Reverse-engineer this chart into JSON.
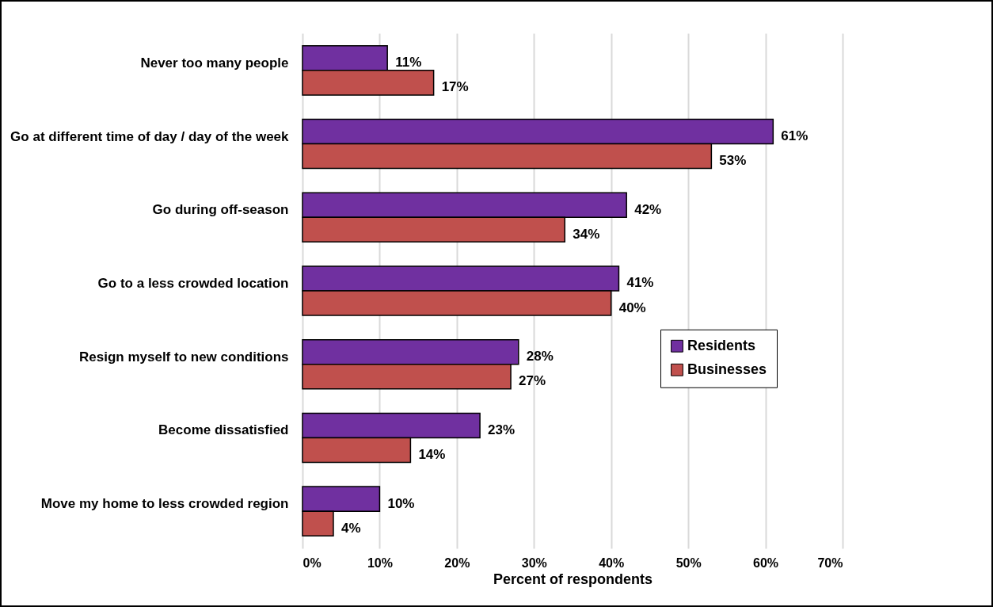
{
  "chart_data": {
    "type": "bar",
    "orientation": "horizontal",
    "xlabel": "Percent of respondents",
    "categories": [
      "Never too many people",
      "Go at different time of day / day of the week",
      "Go during off-season",
      "Go to a less crowded location",
      "Resign myself to new conditions",
      "Become dissatisfied",
      "Move my home to less crowded region"
    ],
    "series": [
      {
        "name": "Residents",
        "color": "#7030a0",
        "values": [
          11,
          61,
          42,
          41,
          28,
          23,
          10
        ],
        "value_labels": [
          "11%",
          "61%",
          "42%",
          "41%",
          "28%",
          "23%",
          "10%"
        ]
      },
      {
        "name": "Businesses",
        "color": "#c0504d",
        "values": [
          17,
          53,
          34,
          40,
          27,
          14,
          4
        ],
        "value_labels": [
          "17%",
          "53%",
          "34%",
          "40%",
          "27%",
          "14%",
          "4%"
        ]
      }
    ],
    "xlim": [
      0,
      70
    ],
    "xticks": [
      {
        "value": 0,
        "label": "0%"
      },
      {
        "value": 10,
        "label": "10%"
      },
      {
        "value": 20,
        "label": "20%"
      },
      {
        "value": 30,
        "label": "30%"
      },
      {
        "value": 40,
        "label": "40%"
      },
      {
        "value": 50,
        "label": "50%"
      },
      {
        "value": 60,
        "label": "60%"
      },
      {
        "value": 70,
        "label": "70%"
      }
    ],
    "grid": "x",
    "legend": "right"
  }
}
